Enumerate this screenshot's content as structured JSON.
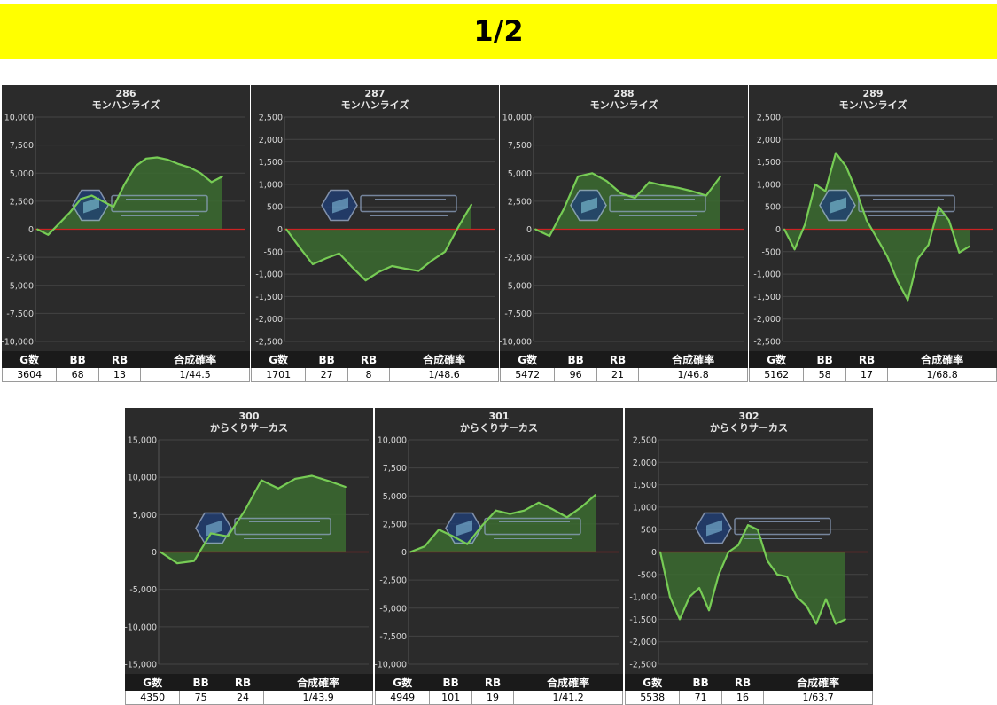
{
  "page_indicator": "1/2",
  "table_headers": [
    "G数",
    "BB",
    "RB",
    "合成確率"
  ],
  "colors": {
    "line": "#77cc55",
    "fill": "#3b6b30",
    "zero_line": "#cc2222",
    "panel_bg": "#2b2b2b"
  },
  "chart_data": [
    {
      "type": "area",
      "machine_number": "286",
      "machine_name": "モンハンライズ",
      "ylim": [
        -10000,
        10000
      ],
      "ticks": [
        10000,
        7500,
        5000,
        2500,
        0,
        -2500,
        -5000,
        -7500,
        -10000
      ],
      "tick_labels": [
        "10,000",
        "7,500",
        "5,000",
        "2,500",
        "0",
        "-2,500",
        "-5,000",
        "-7,500",
        "-10,000"
      ],
      "values": [
        0,
        -500,
        500,
        1500,
        2700,
        3000,
        2500,
        2000,
        4000,
        5600,
        6300,
        6400,
        6200,
        5800,
        5500,
        5000,
        4200,
        4700
      ],
      "stats": {
        "games": "3604",
        "bb": "68",
        "rb": "13",
        "rate": "1/44.5"
      }
    },
    {
      "type": "area",
      "machine_number": "287",
      "machine_name": "モンハンライズ",
      "ylim": [
        -2500,
        2500
      ],
      "ticks": [
        2500,
        2000,
        1500,
        1000,
        500,
        0,
        -500,
        -1000,
        -1500,
        -2000,
        -2500
      ],
      "tick_labels": [
        "2,500",
        "2,000",
        "1,500",
        "1,000",
        "500",
        "0",
        "-500",
        "-1,000",
        "-1,500",
        "-2,000",
        "-2,500"
      ],
      "values": [
        0,
        -400,
        -780,
        -650,
        -540,
        -850,
        -1140,
        -950,
        -820,
        -880,
        -930,
        -700,
        -500,
        50,
        550
      ],
      "stats": {
        "games": "1701",
        "bb": "27",
        "rb": "8",
        "rate": "1/48.6"
      }
    },
    {
      "type": "area",
      "machine_number": "288",
      "machine_name": "モンハンライズ",
      "ylim": [
        -10000,
        10000
      ],
      "ticks": [
        10000,
        7500,
        5000,
        2500,
        0,
        -2500,
        -5000,
        -7500,
        -10000
      ],
      "tick_labels": [
        "10,000",
        "7,500",
        "5,000",
        "2,500",
        "0",
        "-2,500",
        "-5,000",
        "-7,500",
        "-10,000"
      ],
      "values": [
        0,
        -600,
        1800,
        4700,
        5000,
        4300,
        3200,
        2800,
        4200,
        3900,
        3700,
        3400,
        3000,
        4700
      ],
      "stats": {
        "games": "5472",
        "bb": "96",
        "rb": "21",
        "rate": "1/46.8"
      }
    },
    {
      "type": "area",
      "machine_number": "289",
      "machine_name": "モンハンライズ",
      "ylim": [
        -2500,
        2500
      ],
      "ticks": [
        2500,
        2000,
        1500,
        1000,
        500,
        0,
        -500,
        -1000,
        -1500,
        -2000,
        -2500
      ],
      "tick_labels": [
        "2,500",
        "2,000",
        "1,500",
        "1,000",
        "500",
        "0",
        "-500",
        "-1,000",
        "-1,500",
        "-2,000",
        "-2,500"
      ],
      "values": [
        0,
        -450,
        100,
        1000,
        850,
        1700,
        1400,
        850,
        200,
        -200,
        -600,
        -1150,
        -1580,
        -650,
        -350,
        500,
        200,
        -520,
        -380
      ],
      "stats": {
        "games": "5162",
        "bb": "58",
        "rb": "17",
        "rate": "1/68.8"
      }
    },
    {
      "type": "area",
      "machine_number": "300",
      "machine_name": "からくりサーカス",
      "ylim": [
        -15000,
        15000
      ],
      "ticks": [
        15000,
        10000,
        5000,
        0,
        -5000,
        -10000,
        -15000
      ],
      "tick_labels": [
        "15,000",
        "10,000",
        "5,000",
        "0",
        "-5,000",
        "-10,000",
        "-15,000"
      ],
      "values": [
        0,
        -1500,
        -1200,
        2500,
        2100,
        5500,
        9600,
        8500,
        9800,
        10200,
        9500,
        8700
      ],
      "stats": {
        "games": "4350",
        "bb": "75",
        "rb": "24",
        "rate": "1/43.9"
      }
    },
    {
      "type": "area",
      "machine_number": "301",
      "machine_name": "からくりサーカス",
      "ylim": [
        -10000,
        10000
      ],
      "ticks": [
        10000,
        7500,
        5000,
        2500,
        0,
        -2500,
        -5000,
        -7500,
        -10000
      ],
      "tick_labels": [
        "10,000",
        "7,500",
        "5,000",
        "2,500",
        "0",
        "-2,500",
        "-5,000",
        "-7,500",
        "-10,000"
      ],
      "values": [
        0,
        500,
        2000,
        1400,
        700,
        2300,
        3700,
        3400,
        3700,
        4400,
        3800,
        3100,
        4000,
        5100
      ],
      "stats": {
        "games": "4949",
        "bb": "101",
        "rb": "19",
        "rate": "1/41.2"
      }
    },
    {
      "type": "area",
      "machine_number": "302",
      "machine_name": "からくりサーカス",
      "ylim": [
        -2500,
        2500
      ],
      "ticks": [
        2500,
        2000,
        1500,
        1000,
        500,
        0,
        -500,
        -1000,
        -1500,
        -2000,
        -2500
      ],
      "tick_labels": [
        "2,500",
        "2,000",
        "1,500",
        "1,000",
        "500",
        "0",
        "-500",
        "-1,000",
        "-1,500",
        "-2,000",
        "-2,500"
      ],
      "values": [
        0,
        -1000,
        -1500,
        -1000,
        -800,
        -1300,
        -500,
        0,
        150,
        600,
        500,
        -200,
        -500,
        -550,
        -1000,
        -1200,
        -1600,
        -1050,
        -1600,
        -1500
      ],
      "stats": {
        "games": "5538",
        "bb": "71",
        "rb": "16",
        "rate": "1/63.7"
      }
    }
  ]
}
